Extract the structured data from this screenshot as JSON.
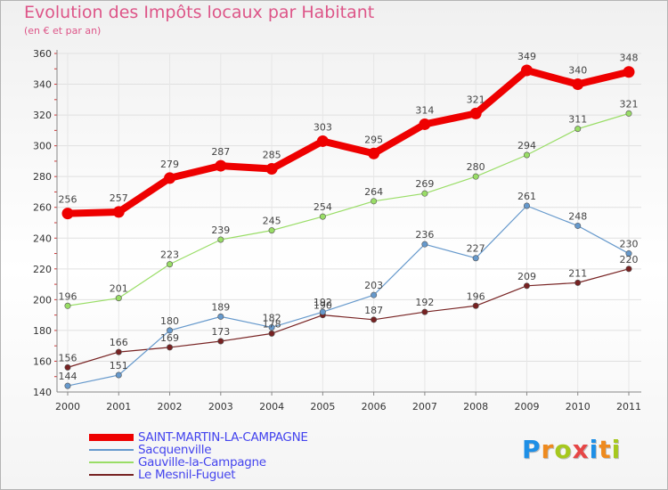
{
  "title": "Evolution des Impôts locaux par Habitant",
  "subtitle": "(en € et par an)",
  "brand": {
    "text": "Proxiti",
    "colors": [
      "#1e8fe6",
      "#ee8a1e",
      "#a6c81e",
      "#e64646",
      "#1e8fe6",
      "#ee8a1e",
      "#a6c81e"
    ]
  },
  "chart_data": {
    "type": "line",
    "x": [
      "2000",
      "2001",
      "2002",
      "2003",
      "2004",
      "2005",
      "2006",
      "2007",
      "2008",
      "2009",
      "2010",
      "2011"
    ],
    "ylim": [
      140,
      360
    ],
    "yticks": [
      140,
      160,
      180,
      200,
      220,
      240,
      260,
      280,
      300,
      320,
      340,
      360
    ],
    "grid": true,
    "legend_position": "bottom-left",
    "series": [
      {
        "name": "SAINT-MARTIN-LA-CAMPAGNE",
        "color": "#ee0000",
        "width": 8,
        "marker": 6.5,
        "values": [
          256,
          257,
          279,
          287,
          285,
          303,
          295,
          314,
          321,
          349,
          340,
          348
        ]
      },
      {
        "name": "Sacquenville",
        "color": "#6699cc",
        "width": 1.2,
        "marker": 3.2,
        "values": [
          144,
          151,
          180,
          189,
          182,
          192,
          203,
          236,
          227,
          261,
          248,
          230
        ]
      },
      {
        "name": "Gauville-la-Campagne",
        "color": "#99dd66",
        "width": 1.2,
        "marker": 3.2,
        "values": [
          196,
          201,
          223,
          239,
          245,
          254,
          264,
          269,
          280,
          294,
          311,
          321
        ]
      },
      {
        "name": "Le Mesnil-Fuguet",
        "color": "#772222",
        "width": 1.2,
        "marker": 3.2,
        "values": [
          156,
          166,
          169,
          173,
          178,
          190,
          187,
          192,
          196,
          209,
          211,
          220
        ]
      }
    ]
  }
}
